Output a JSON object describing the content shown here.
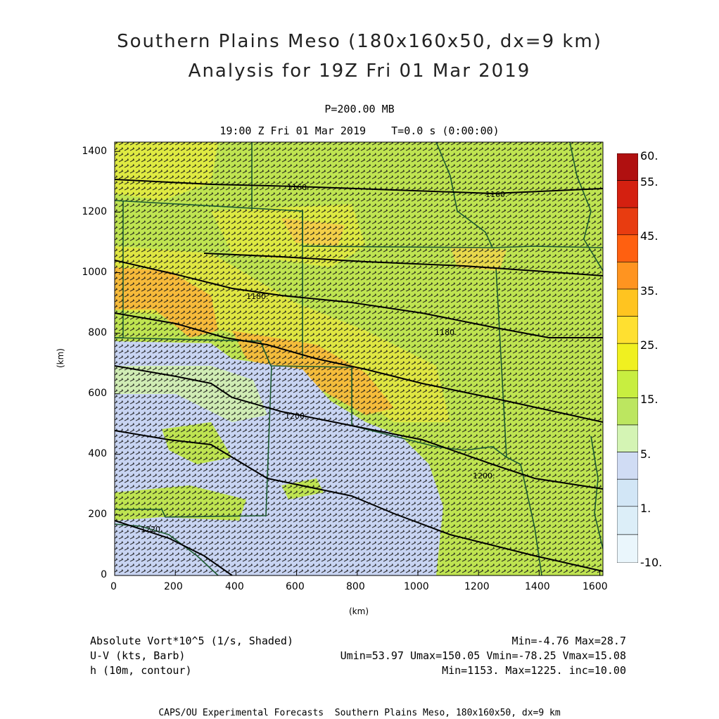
{
  "title": {
    "line1": "Southern Plains Meso (180x160x50, dx=9 km)",
    "line2": "Analysis for 19Z Fri 01 Mar 2019"
  },
  "subtitle": {
    "level": "P=200.00 MB",
    "time": "19:00 Z Fri 01 Mar 2019    T=0.0 s (0:00:00)"
  },
  "axes": {
    "x_label": "(km)",
    "y_label": "(km)",
    "x_ticks": [
      "0",
      "200",
      "400",
      "600",
      "800",
      "1000",
      "1200",
      "1400",
      "1600"
    ],
    "y_ticks": [
      "0",
      "200",
      "400",
      "600",
      "800",
      "1000",
      "1200",
      "1400"
    ],
    "x_range": [
      0,
      1611
    ],
    "y_range": [
      0,
      1431
    ]
  },
  "colorbar": {
    "labels": [
      "60.",
      "55.",
      "45.",
      "35.",
      "25.",
      "15.",
      "5.",
      "1.",
      "-10."
    ],
    "colors": [
      "#b01010",
      "#d42010",
      "#e83c10",
      "#ff6010",
      "#ff9420",
      "#ffc420",
      "#f0f020",
      "#c0ee50",
      "#d4f4b4",
      "#d0dcf4",
      "#d8ecf8",
      "#eaf6fc"
    ]
  },
  "contours": {
    "labels": [
      "1160.",
      "1160.",
      "1180.",
      "1180.",
      "1200.",
      "1200.",
      "1220."
    ]
  },
  "footer": {
    "field1_name": "Absolute Vort*10^5 (1/s, Shaded)",
    "field1_stats": "Min=-4.76 Max=28.7",
    "field2_name": "U-V (kts, Barb)",
    "field2_stats": "Umin=53.97 Umax=150.05 Vmin=-78.25 Vmax=15.08",
    "field3_name": "h (10m, contour)",
    "field3_stats": "Min=1153. Max=1225. inc=10.00",
    "credit": "CAPS/OU Experimental Forecasts  Southern Plains Meso, 180x160x50, dx=9 km"
  }
}
